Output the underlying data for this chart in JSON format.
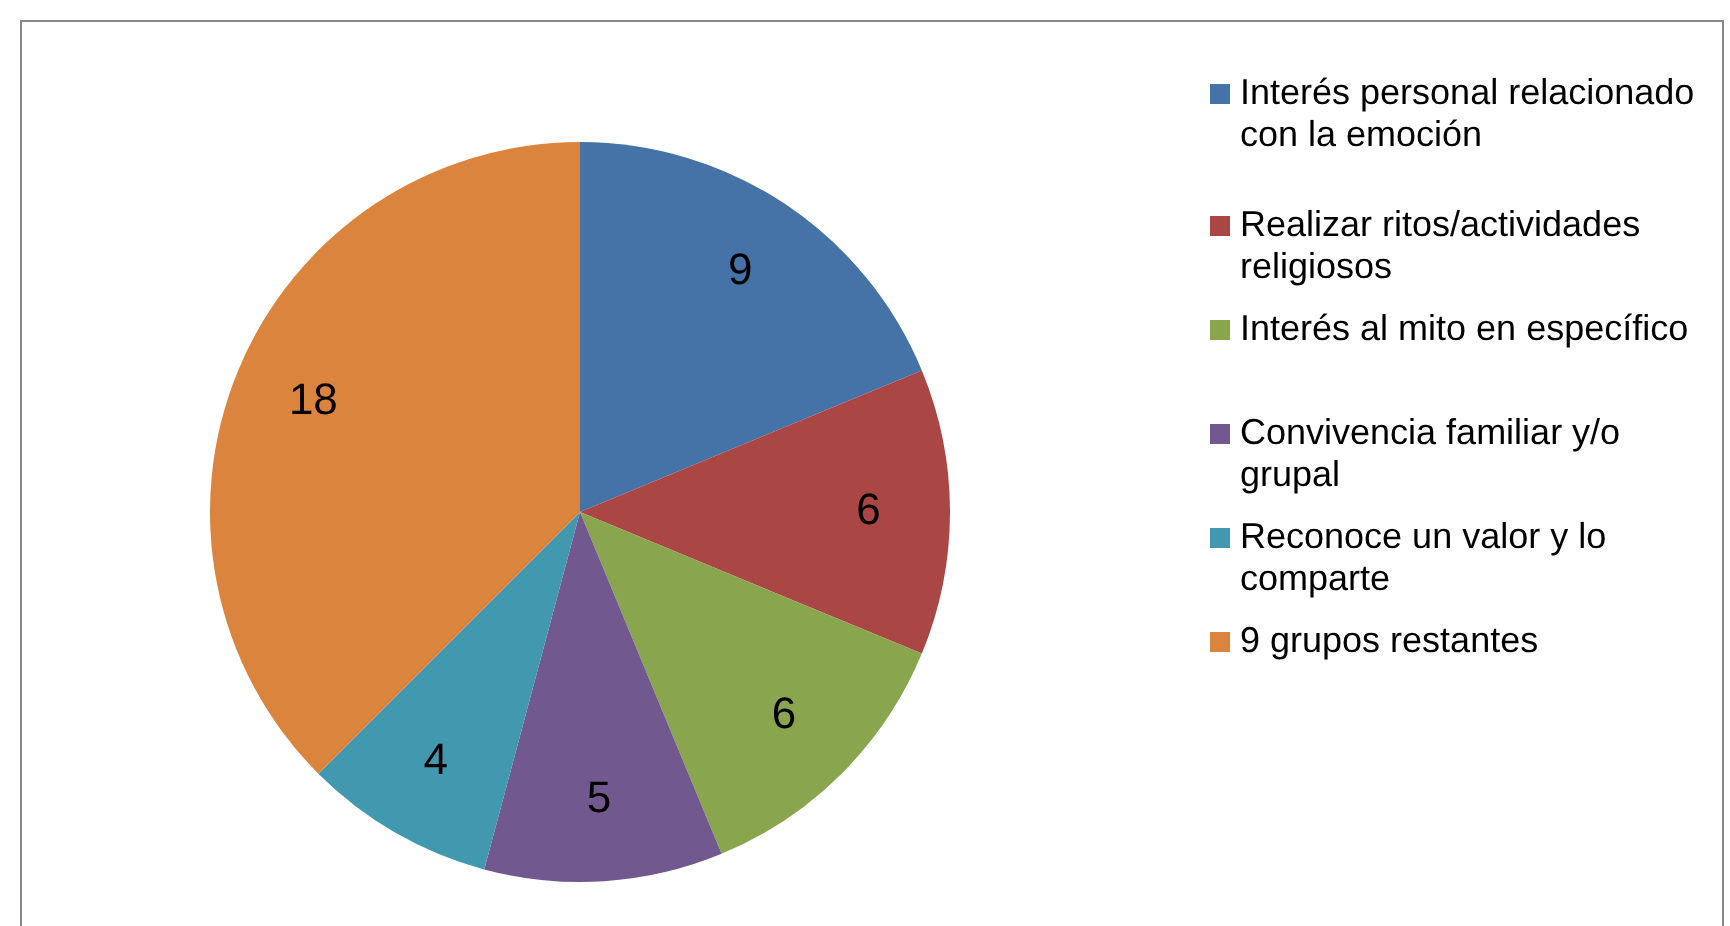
{
  "chart_data": {
    "type": "pie",
    "categories": [
      "Interés personal relacionado con la emoción",
      "Realizar ritos/actividades religiosos",
      "Interés al mito en específico",
      "Convivencia familiar y/o grupal",
      "Reconoce un valor y lo comparte",
      "9 grupos restantes"
    ],
    "values": [
      9,
      6,
      6,
      5,
      4,
      18
    ],
    "colors": [
      "#4572a7",
      "#aa4643",
      "#89a54e",
      "#71588f",
      "#4198af",
      "#db843d"
    ],
    "data_labels": true,
    "legend": "right"
  }
}
